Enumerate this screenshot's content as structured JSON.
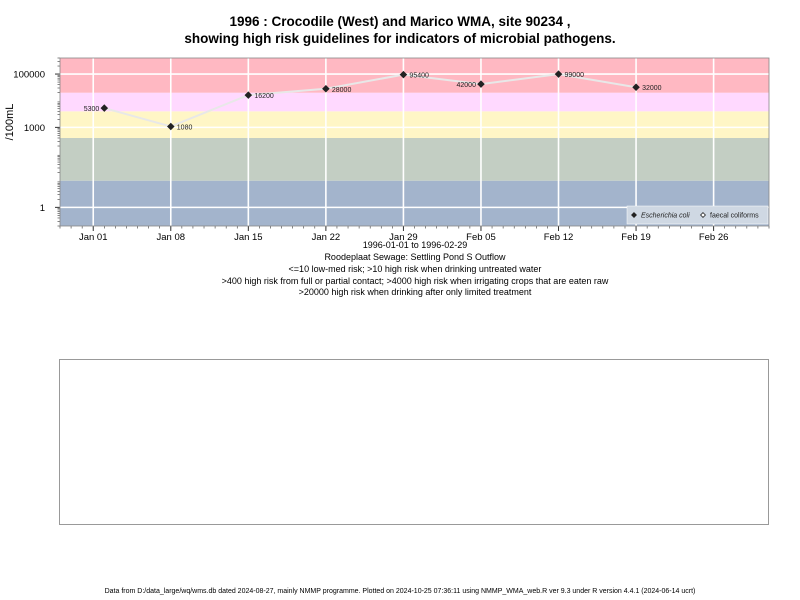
{
  "title": {
    "line1": "1996 : Crocodile (West) and Marico WMA, site 90234 ,",
    "line2": "showing high risk guidelines for indicators of microbial pathogens."
  },
  "info": {
    "date_range": "1996-01-01 to 1996-02-29",
    "site_name": "Roodeplaat Sewage: Settling Pond S Outflow",
    "guideline1": "<=10 low-med risk; >10 high risk when drinking untreated water",
    "guideline2": ">400 high risk from full or partial contact; >4000 high risk when irrigating crops that are eaten raw",
    "guideline3": ">20000 high risk when drinking after only limited treatment"
  },
  "footer": "Data from D:/data_large/wq/wms.db dated 2024-08-27, mainly NMMP programme. Plotted on 2024-10-25 07:36:11 using NMMP_WMA_web.R ver 9.3 under R version 4.4.1 (2024-06-14 ucrt)",
  "chart_data": {
    "type": "line",
    "ylabel": "/100mL",
    "y_scale": "log10",
    "ylim": [
      0.2,
      400000
    ],
    "y_ticks": [
      {
        "value": 1,
        "label": "1"
      },
      {
        "value": 1000,
        "label": "1000"
      },
      {
        "value": 100000,
        "label": "100000"
      }
    ],
    "xlim": [
      "1995-12-29",
      "1996-03-02"
    ],
    "x_ticks": [
      {
        "date": "1996-01-01",
        "label": "Jan 01"
      },
      {
        "date": "1996-01-08",
        "label": "Jan 08"
      },
      {
        "date": "1996-01-15",
        "label": "Jan 15"
      },
      {
        "date": "1996-01-22",
        "label": "Jan 22"
      },
      {
        "date": "1996-01-29",
        "label": "Jan 29"
      },
      {
        "date": "1996-02-05",
        "label": "Feb 05"
      },
      {
        "date": "1996-02-12",
        "label": "Feb 12"
      },
      {
        "date": "1996-02-19",
        "label": "Feb 19"
      },
      {
        "date": "1996-02-26",
        "label": "Feb 26"
      }
    ],
    "bands": [
      {
        "from": 0.2,
        "to": 10,
        "color": "#a3b4cc"
      },
      {
        "from": 10,
        "to": 400,
        "color": "#c3cec3"
      },
      {
        "from": 400,
        "to": 4000,
        "color": "#fff6c6"
      },
      {
        "from": 4000,
        "to": 20000,
        "color": "#ffd9ff"
      },
      {
        "from": 20000,
        "to": 400000,
        "color": "#ffb8c2"
      }
    ],
    "grid": true,
    "series": [
      {
        "name": "Escherichia coli",
        "marker": "filled-diamond",
        "line_color": "#e8e8e8",
        "points": [
          {
            "x": "1996-01-02",
            "y": 5300,
            "label": "5300"
          },
          {
            "x": "1996-01-08",
            "y": 1080,
            "label": "1080"
          },
          {
            "x": "1996-01-15",
            "y": 16200,
            "label": "16200"
          },
          {
            "x": "1996-01-22",
            "y": 28000,
            "label": "28000"
          },
          {
            "x": "1996-01-29",
            "y": 95400,
            "label": "95400"
          },
          {
            "x": "1996-02-05",
            "y": 42000,
            "label": "42000"
          },
          {
            "x": "1996-02-12",
            "y": 99000,
            "label": "99000"
          },
          {
            "x": "1996-02-19",
            "y": 32000,
            "label": "32000"
          }
        ]
      },
      {
        "name": "faecal coliforms",
        "marker": "open-diamond",
        "points": []
      }
    ],
    "legend": {
      "placement": "bottom-right",
      "entries": [
        {
          "label": "Escherichia coli",
          "marker": "filled-diamond",
          "italic": true
        },
        {
          "label": "faecal coliforms",
          "marker": "open-diamond",
          "italic": false
        }
      ]
    }
  }
}
